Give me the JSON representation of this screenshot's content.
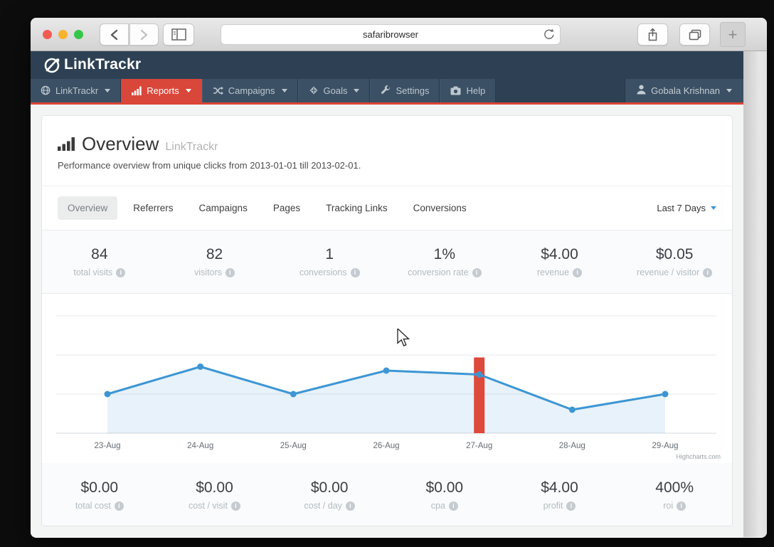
{
  "browser": {
    "url_text": "safaribrowser",
    "back_button": "back",
    "forward_button": "forward",
    "new_tab_label": "+",
    "traffic_light_colors": {
      "close": "#f25b51",
      "minimize": "#f6b32e",
      "zoom": "#35c649"
    }
  },
  "site_header": {
    "brand": "LinkTrackr"
  },
  "navbar": {
    "items": [
      {
        "label": "LinkTrackr",
        "icon": "globe-icon",
        "caret": true,
        "active": false
      },
      {
        "label": "Reports",
        "icon": "bar-chart-icon",
        "caret": true,
        "active": true
      },
      {
        "label": "Campaigns",
        "icon": "shuffle-icon",
        "caret": true,
        "active": false
      },
      {
        "label": "Goals",
        "icon": "goal-diamond-icon",
        "caret": true,
        "active": false
      },
      {
        "label": "Settings",
        "icon": "wrench-icon",
        "caret": false,
        "active": false
      },
      {
        "label": "Help",
        "icon": "camera-icon",
        "caret": false,
        "active": false
      }
    ],
    "user": {
      "label": "Gobala Krishnan"
    }
  },
  "page": {
    "title": "Overview",
    "title_suffix": "LinkTrackr",
    "subtitle": "Performance overview from unique clicks from 2013-01-01 till 2013-02-01."
  },
  "tabs": {
    "items": [
      {
        "label": "Overview",
        "active": true
      },
      {
        "label": "Referrers",
        "active": false
      },
      {
        "label": "Campaigns",
        "active": false
      },
      {
        "label": "Pages",
        "active": false
      },
      {
        "label": "Tracking Links",
        "active": false
      },
      {
        "label": "Conversions",
        "active": false
      }
    ],
    "range_selector": "Last 7 Days"
  },
  "stats_top": [
    {
      "value": "84",
      "label": "total visits"
    },
    {
      "value": "82",
      "label": "visitors"
    },
    {
      "value": "1",
      "label": "conversions"
    },
    {
      "value": "1%",
      "label": "conversion rate"
    },
    {
      "value": "$4.00",
      "label": "revenue"
    },
    {
      "value": "$0.05",
      "label": "revenue / visitor"
    }
  ],
  "stats_bottom": [
    {
      "value": "$0.00",
      "label": "total cost"
    },
    {
      "value": "$0.00",
      "label": "cost / visit"
    },
    {
      "value": "$0.00",
      "label": "cost / day"
    },
    {
      "value": "$0.00",
      "label": "cpa"
    },
    {
      "value": "$4.00",
      "label": "profit"
    },
    {
      "value": "400%",
      "label": "roi"
    }
  ],
  "chart_data": {
    "type": "area",
    "categories": [
      "23-Aug",
      "24-Aug",
      "25-Aug",
      "26-Aug",
      "27-Aug",
      "28-Aug",
      "29-Aug"
    ],
    "series": [
      {
        "name": "visits",
        "type": "area",
        "color": "#3d96d3",
        "fill": "rgba(61,150,211,0.12)",
        "values": [
          10,
          17,
          10,
          16,
          15,
          6,
          10
        ]
      },
      {
        "name": "conversions",
        "type": "column",
        "color": "#dd4a3c",
        "values": [
          0,
          0,
          0,
          0,
          1,
          0,
          0
        ]
      }
    ],
    "ylim": [
      0,
      30
    ],
    "y2lim": [
      0,
      1.55
    ],
    "grid_step": 10,
    "y_axis_labels": "hidden",
    "legend": "none",
    "credit": "Highcharts.com"
  },
  "colors": {
    "header_navy": "#2e4154",
    "nav_item": "#3b5064",
    "active_red": "#d9473a",
    "underline_red": "#da4536",
    "line_blue": "#3d96d3",
    "page_bg": "#f3f5f5"
  }
}
